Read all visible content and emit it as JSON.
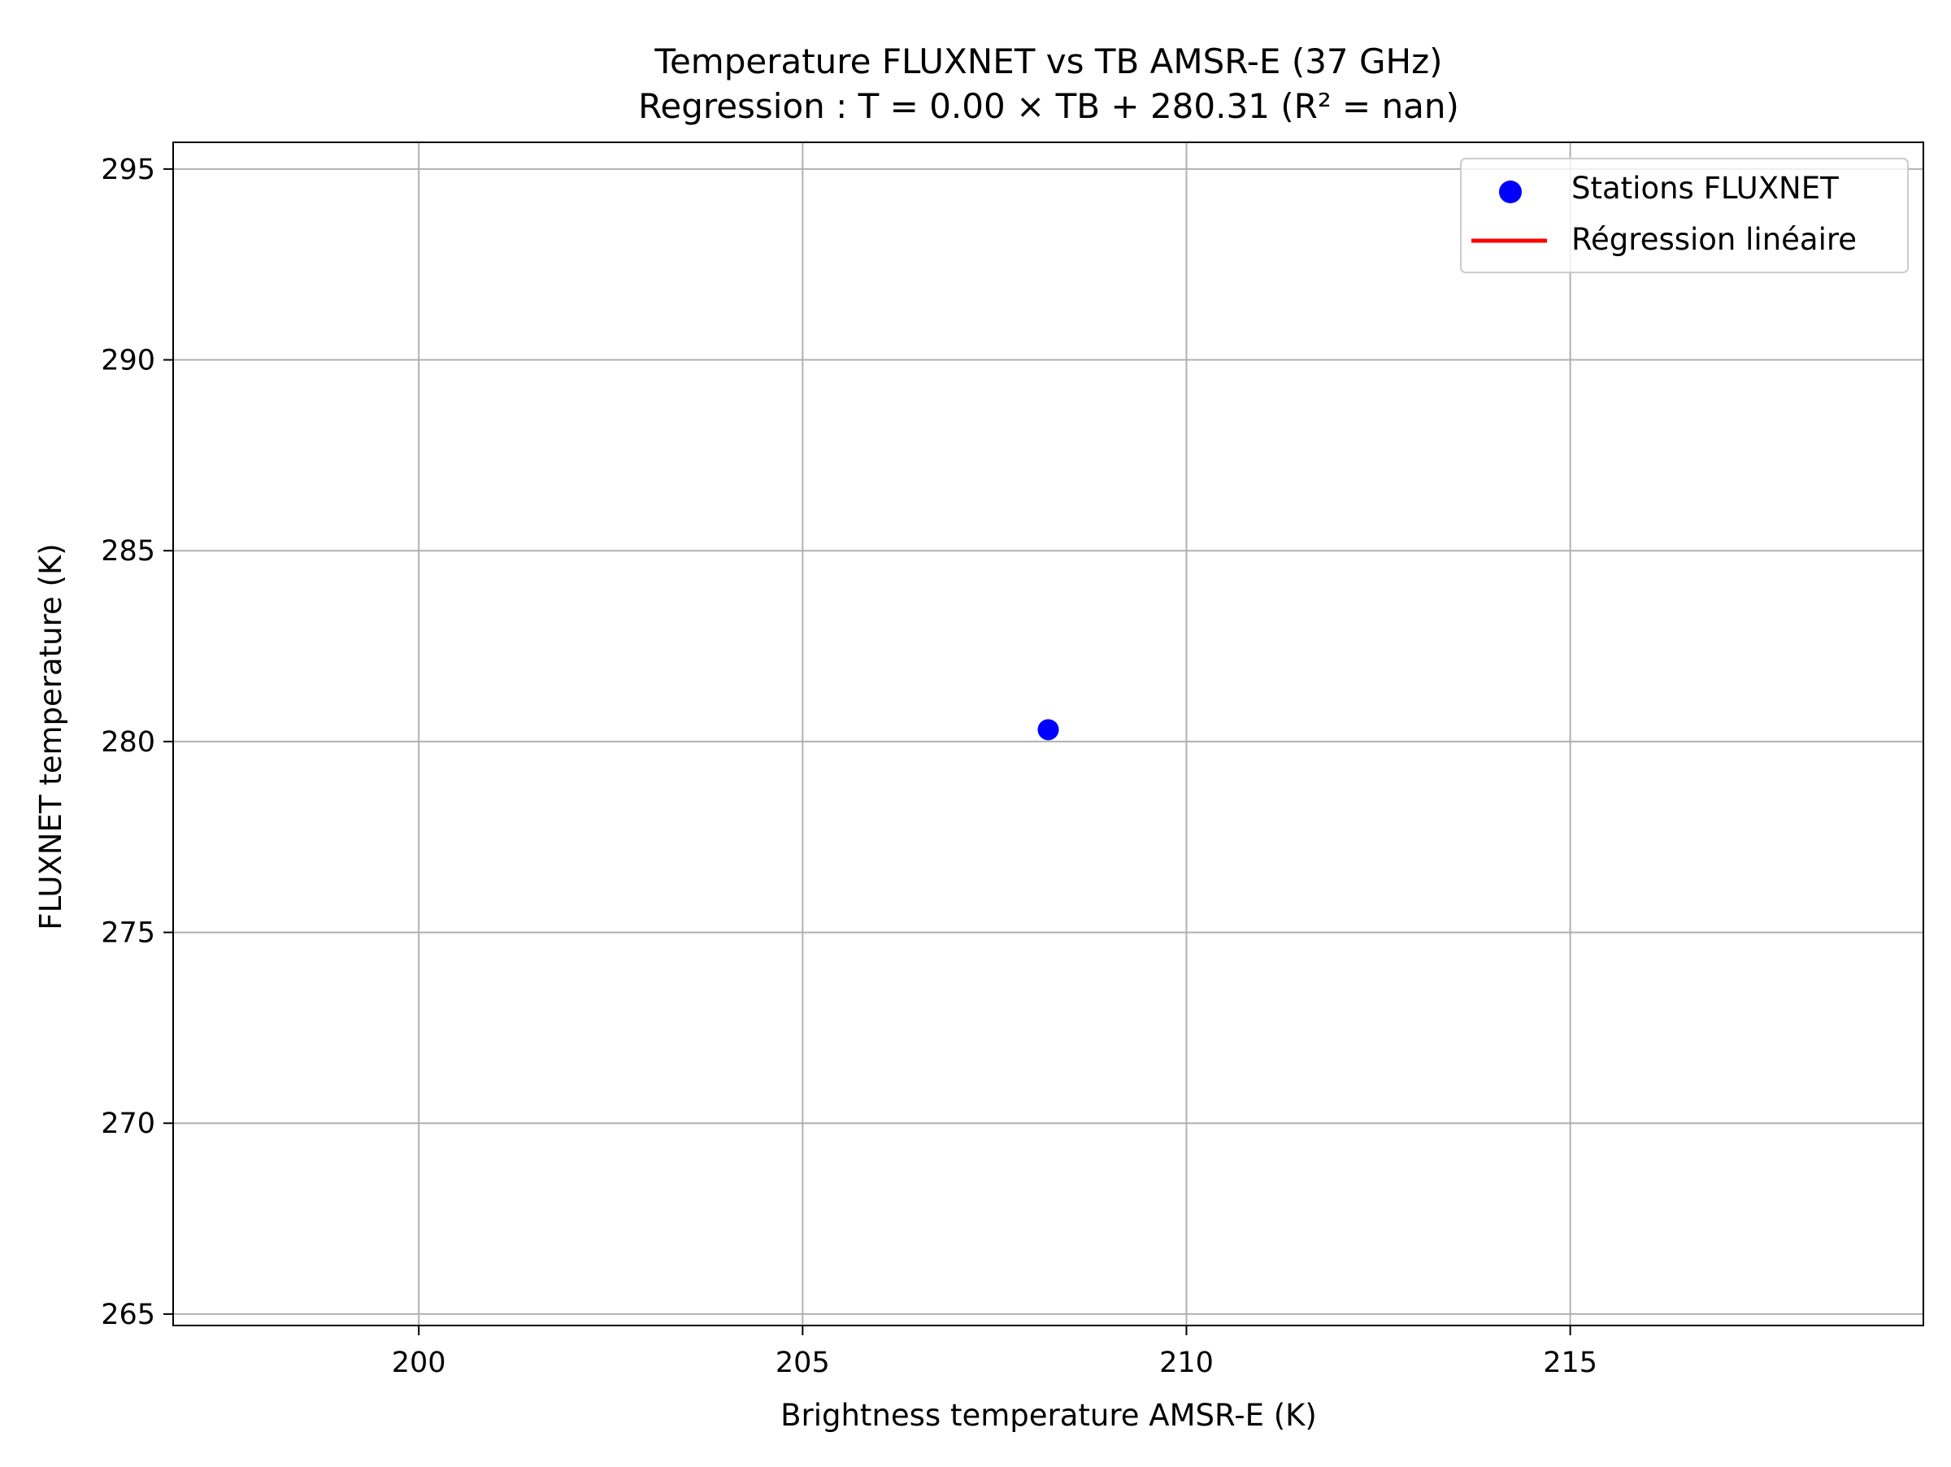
{
  "chart_data": {
    "type": "scatter",
    "title": "Temperature FLUXNET vs TB AMSR-E (37 GHz)",
    "subtitle": "Regression : T = 0.00 × TB + 280.31 (R² = nan)",
    "xlabel": "Brightness temperature AMSR-E (K)",
    "ylabel": "FLUXNET temperature (K)",
    "xlim": [
      196.8,
      219.6
    ],
    "ylim": [
      264.7,
      295.7
    ],
    "xticks": [
      200,
      205,
      210,
      215
    ],
    "yticks": [
      265,
      270,
      275,
      280,
      285,
      290,
      295
    ],
    "grid": true,
    "legend_position": "top-right",
    "series": [
      {
        "name": "Stations FLUXNET",
        "kind": "scatter",
        "color": "#0000ff",
        "points": [
          {
            "x": 208.2,
            "y": 280.31
          }
        ]
      },
      {
        "name": "Régression linéaire",
        "kind": "line",
        "color": "#ff0000",
        "points": []
      }
    ]
  }
}
